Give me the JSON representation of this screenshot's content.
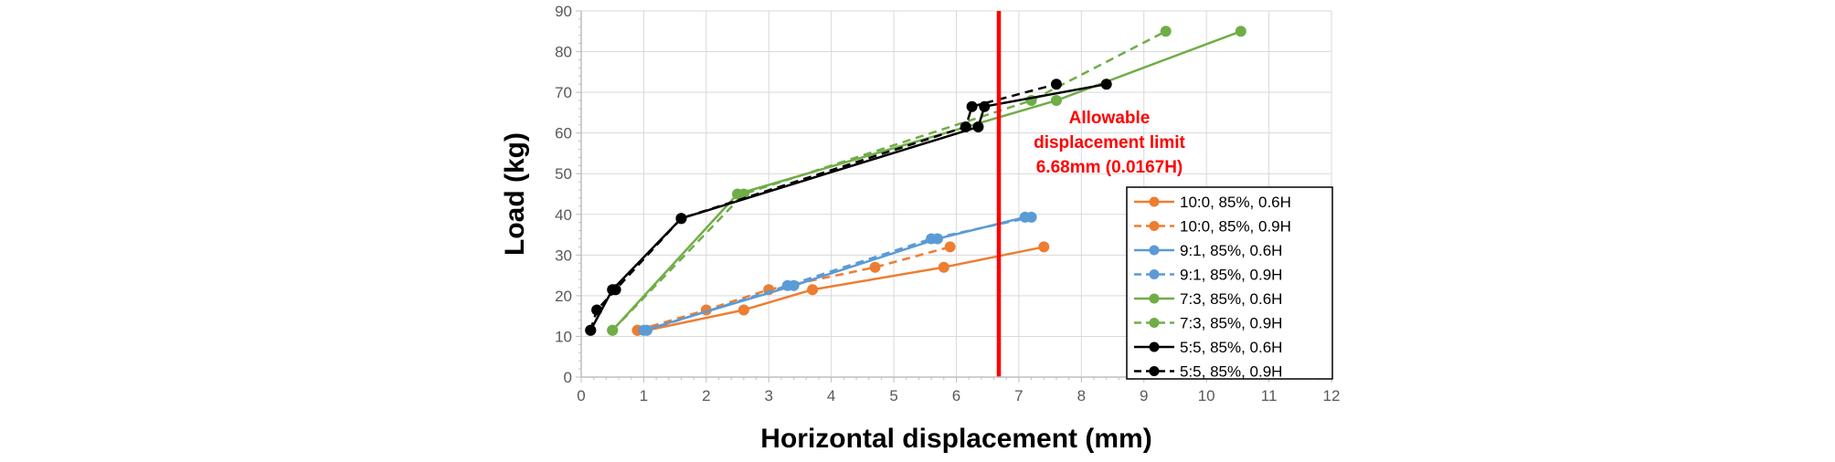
{
  "chart_data": {
    "type": "line",
    "title": "",
    "xlabel": "Horizontal displacement (mm)",
    "ylabel": "Load (kg)",
    "xlim": [
      0,
      12
    ],
    "ylim": [
      0,
      90
    ],
    "x_ticks": [
      "0",
      "1",
      "2",
      "3",
      "4",
      "5",
      "6",
      "7",
      "8",
      "9",
      "10",
      "11",
      "12"
    ],
    "y_ticks": [
      "0",
      "10",
      "20",
      "30",
      "40",
      "50",
      "60",
      "70",
      "80",
      "90"
    ],
    "grid": true,
    "legend_position": "right-inside",
    "limit_line": {
      "x": 6.68,
      "color": "#ff0000",
      "label_lines": [
        "Allowable",
        "displacement limit",
        "6.68mm (0.0167H)"
      ]
    },
    "series": [
      {
        "name": "10:0, 85%, 0.6H",
        "color": "#ed7d31",
        "dash": false,
        "x": [
          0.9,
          1.05,
          2.6,
          3.7,
          5.8,
          7.4
        ],
        "y": [
          11.5,
          11.5,
          16.5,
          21.5,
          27,
          32
        ]
      },
      {
        "name": "10:0, 85%, 0.9H",
        "color": "#ed7d31",
        "dash": true,
        "x": [
          0.9,
          2.0,
          3.0,
          4.7,
          5.9
        ],
        "y": [
          11.5,
          16.5,
          21.5,
          27,
          32
        ]
      },
      {
        "name": "9:1, 85%, 0.6H",
        "color": "#5b9bd5",
        "dash": false,
        "x": [
          1.0,
          3.4,
          5.7,
          7.1
        ],
        "y": [
          11.5,
          22.5,
          34,
          39.3
        ]
      },
      {
        "name": "9:1, 85%, 0.9H",
        "color": "#5b9bd5",
        "dash": true,
        "x": [
          1.05,
          3.3,
          5.6,
          7.2
        ],
        "y": [
          11.5,
          22.5,
          34,
          39.3
        ]
      },
      {
        "name": "7:3, 85%, 0.6H",
        "color": "#70ad47",
        "dash": false,
        "x": [
          0.5,
          2.5,
          7.6,
          10.55
        ],
        "y": [
          11.5,
          45,
          68,
          85
        ]
      },
      {
        "name": "7:3, 85%, 0.9H",
        "color": "#70ad47",
        "dash": true,
        "x": [
          0.5,
          2.6,
          7.2,
          9.35
        ],
        "y": [
          11.5,
          45,
          68,
          85
        ]
      },
      {
        "name": "5:5, 85%, 0.6H",
        "color": "#000000",
        "dash": false,
        "x": [
          0.15,
          0.5,
          1.6,
          6.35,
          6.45,
          8.4
        ],
        "y": [
          11.5,
          21.5,
          39,
          61.5,
          66.5,
          72
        ]
      },
      {
        "name": "5:5, 85%, 0.9H",
        "color": "#000000",
        "dash": true,
        "x": [
          0.15,
          0.25,
          0.55,
          1.6,
          6.15,
          6.25,
          7.6
        ],
        "y": [
          11.5,
          16.5,
          21.5,
          39,
          61.5,
          66.5,
          72
        ]
      }
    ]
  }
}
